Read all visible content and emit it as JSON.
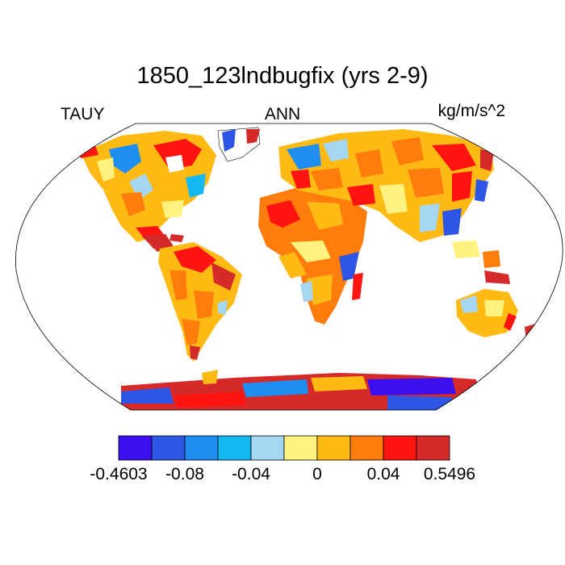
{
  "title": "1850_123lndbugfix (yrs 2-9)",
  "left_label": "TAUY",
  "center_label": "ANN",
  "right_label": "kg/m/s^2",
  "projection": "robinson",
  "colorbar": {
    "colors": [
      "#3b0ff0",
      "#2f55e4",
      "#1f8ef2",
      "#14b9f4",
      "#a5d6f2",
      "#fff27f",
      "#ffba14",
      "#ff7c0d",
      "#ff1410",
      "#d62a2a"
    ],
    "tick_labels": [
      "-0.4603",
      "-0.08",
      "-0.04",
      "0",
      "0.04",
      "0.5496"
    ]
  }
}
